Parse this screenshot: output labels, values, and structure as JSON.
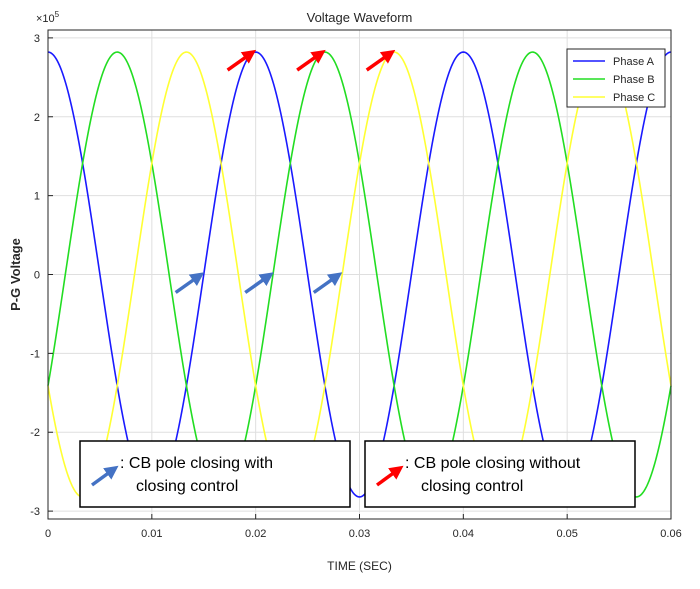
{
  "chart_data": {
    "type": "line",
    "title": "Voltage Waveform",
    "xlabel": "TIME (SEC)",
    "ylabel": "P-G Voltage",
    "y_exponent_label": "×10",
    "y_exponent_power": "5",
    "xlim": [
      0,
      0.06
    ],
    "ylim": [
      -3.1,
      3.1
    ],
    "x_ticks": [
      0,
      0.01,
      0.02,
      0.03,
      0.04,
      0.05,
      0.06
    ],
    "x_tick_labels": [
      "0",
      "0.01",
      "0.02",
      "0.03",
      "0.04",
      "0.05",
      "0.06"
    ],
    "y_ticks": [
      -3,
      -2,
      -1,
      0,
      1,
      2,
      3
    ],
    "y_tick_labels": [
      "-3",
      "-2",
      "-1",
      "0",
      "1",
      "2",
      "3"
    ],
    "grid": true,
    "legend_position": "top-right",
    "series": [
      {
        "name": "Phase A",
        "color": "#1a1aff",
        "amplitude": 2.82,
        "frequency_hz": 50,
        "phase_deg": 90
      },
      {
        "name": "Phase B",
        "color": "#22dd22",
        "amplitude": 2.82,
        "frequency_hz": 50,
        "phase_deg": -30
      },
      {
        "name": "Phase C",
        "color": "#ffff33",
        "amplitude": 2.82,
        "frequency_hz": 50,
        "phase_deg": 210
      }
    ],
    "annotations": {
      "blue_arrows": [
        {
          "x": 0.0148,
          "y": 0.0
        },
        {
          "x": 0.0215,
          "y": 0.0
        },
        {
          "x": 0.0281,
          "y": 0.0
        }
      ],
      "red_arrows": [
        {
          "x": 0.0198,
          "y": 2.82
        },
        {
          "x": 0.0265,
          "y": 2.82
        },
        {
          "x": 0.0332,
          "y": 2.82
        }
      ],
      "blue_arrow_color": "#4472c4",
      "red_arrow_color": "#ff0000",
      "boxes": [
        {
          "line1": ": CB pole closing with",
          "line2": "closing control"
        },
        {
          "line1": ": CB pole closing without",
          "line2": "closing control"
        }
      ]
    }
  }
}
